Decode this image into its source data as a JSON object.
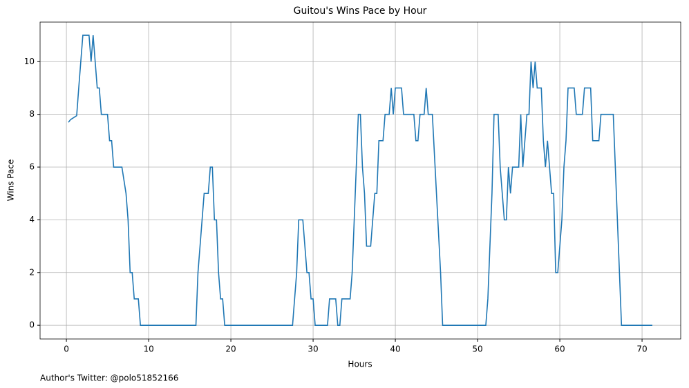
{
  "chart_data": {
    "type": "line",
    "title": "Guitou's Wins Pace by Hour",
    "xlabel": "Hours",
    "ylabel": "Wins Pace",
    "annotation": "Author's Twitter: @polo51852166",
    "xlim": [
      -3.2,
      74.7
    ],
    "ylim": [
      -0.52,
      11.5
    ],
    "xticks": [
      0,
      10,
      20,
      30,
      40,
      50,
      60,
      70
    ],
    "yticks": [
      0,
      2,
      4,
      6,
      8,
      10
    ],
    "grid": true,
    "series": [
      {
        "name": "Wins Pace",
        "color": "#1f77b4",
        "x": [
          0.25,
          0.5,
          1.0,
          1.25,
          1.5,
          2.0,
          2.75,
          3.0,
          3.25,
          3.5,
          3.75,
          4.0,
          4.25,
          5.0,
          5.25,
          5.5,
          5.75,
          6.75,
          7.25,
          7.5,
          7.75,
          8.0,
          8.25,
          8.75,
          9.0,
          15.75,
          16.0,
          16.5,
          16.75,
          17.25,
          17.5,
          17.75,
          18.0,
          18.25,
          18.5,
          18.75,
          19.0,
          19.25,
          27.5,
          27.75,
          28.0,
          28.25,
          28.75,
          29.0,
          29.25,
          29.5,
          29.75,
          30.0,
          30.25,
          31.75,
          32.0,
          32.75,
          33.0,
          33.25,
          33.5,
          34.5,
          34.75,
          35.0,
          35.25,
          35.5,
          35.75,
          36.0,
          36.25,
          36.5,
          37.0,
          37.25,
          37.5,
          37.75,
          38.0,
          38.5,
          38.75,
          39.25,
          39.5,
          39.75,
          40.0,
          40.75,
          41.0,
          42.25,
          42.5,
          42.75,
          43.0,
          43.5,
          43.75,
          44.0,
          44.5,
          45.0,
          45.5,
          45.75,
          51.0,
          51.25,
          51.5,
          51.75,
          52.0,
          52.5,
          52.75,
          53.0,
          53.25,
          53.5,
          53.75,
          54.0,
          54.25,
          55.0,
          55.25,
          55.5,
          55.75,
          56.0,
          56.25,
          56.5,
          56.75,
          57.0,
          57.25,
          57.75,
          58.0,
          58.25,
          58.5,
          58.75,
          59.0,
          59.25,
          59.5,
          59.75,
          60.0,
          60.25,
          60.5,
          60.75,
          61.0,
          61.75,
          62.0,
          62.75,
          63.0,
          63.75,
          64.0,
          64.75,
          65.0,
          66.5,
          67.0,
          67.25,
          67.5,
          71.25
        ],
        "values": [
          7.7,
          7.8,
          7.9,
          7.95,
          9,
          11,
          11,
          10,
          11,
          10,
          9,
          9,
          8,
          8,
          7,
          7,
          6,
          6,
          5,
          4,
          2,
          2,
          1,
          1,
          0,
          0,
          2,
          4,
          5,
          5,
          6,
          6,
          4,
          4,
          2,
          1,
          1,
          0,
          0,
          1,
          2,
          4,
          4,
          3,
          2,
          2,
          1,
          1,
          0,
          0,
          1,
          1,
          0,
          0,
          1,
          1,
          2,
          4,
          6,
          8,
          8,
          6,
          5,
          3,
          3,
          4,
          5,
          5,
          7,
          7,
          8,
          8,
          9,
          8,
          9,
          9,
          8,
          8,
          7,
          7,
          8,
          8,
          9,
          8,
          8,
          5,
          2,
          0,
          0,
          1,
          3,
          5,
          8,
          8,
          6,
          5,
          4,
          4,
          6,
          5,
          6,
          6,
          8,
          6,
          7,
          8,
          8,
          10,
          9,
          10,
          9,
          9,
          7,
          6,
          7,
          6,
          5,
          5,
          2,
          2,
          3,
          4,
          6,
          7,
          9,
          9,
          8,
          8,
          9,
          9,
          7,
          7,
          8,
          8,
          4,
          2,
          0,
          0
        ]
      }
    ]
  }
}
